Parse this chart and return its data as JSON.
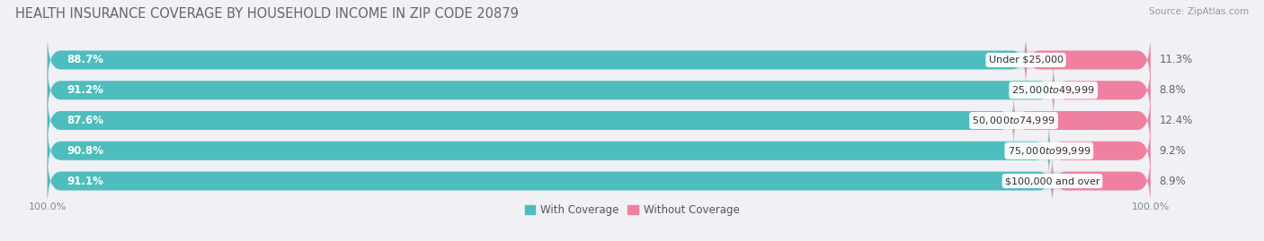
{
  "title": "HEALTH INSURANCE COVERAGE BY HOUSEHOLD INCOME IN ZIP CODE 20879",
  "source": "Source: ZipAtlas.com",
  "categories": [
    "Under $25,000",
    "$25,000 to $49,999",
    "$50,000 to $74,999",
    "$75,000 to $99,999",
    "$100,000 and over"
  ],
  "with_coverage": [
    88.7,
    91.2,
    87.6,
    90.8,
    91.1
  ],
  "without_coverage": [
    11.3,
    8.8,
    12.4,
    9.2,
    8.9
  ],
  "color_with": "#4DBDBD",
  "color_without": "#F080A0",
  "bar_height": 0.62,
  "background_color": "#F0F0F5",
  "bar_bg_color": "#DCDCE8",
  "title_fontsize": 10.5,
  "label_fontsize": 8.5,
  "tick_fontsize": 8,
  "legend_fontsize": 8.5
}
